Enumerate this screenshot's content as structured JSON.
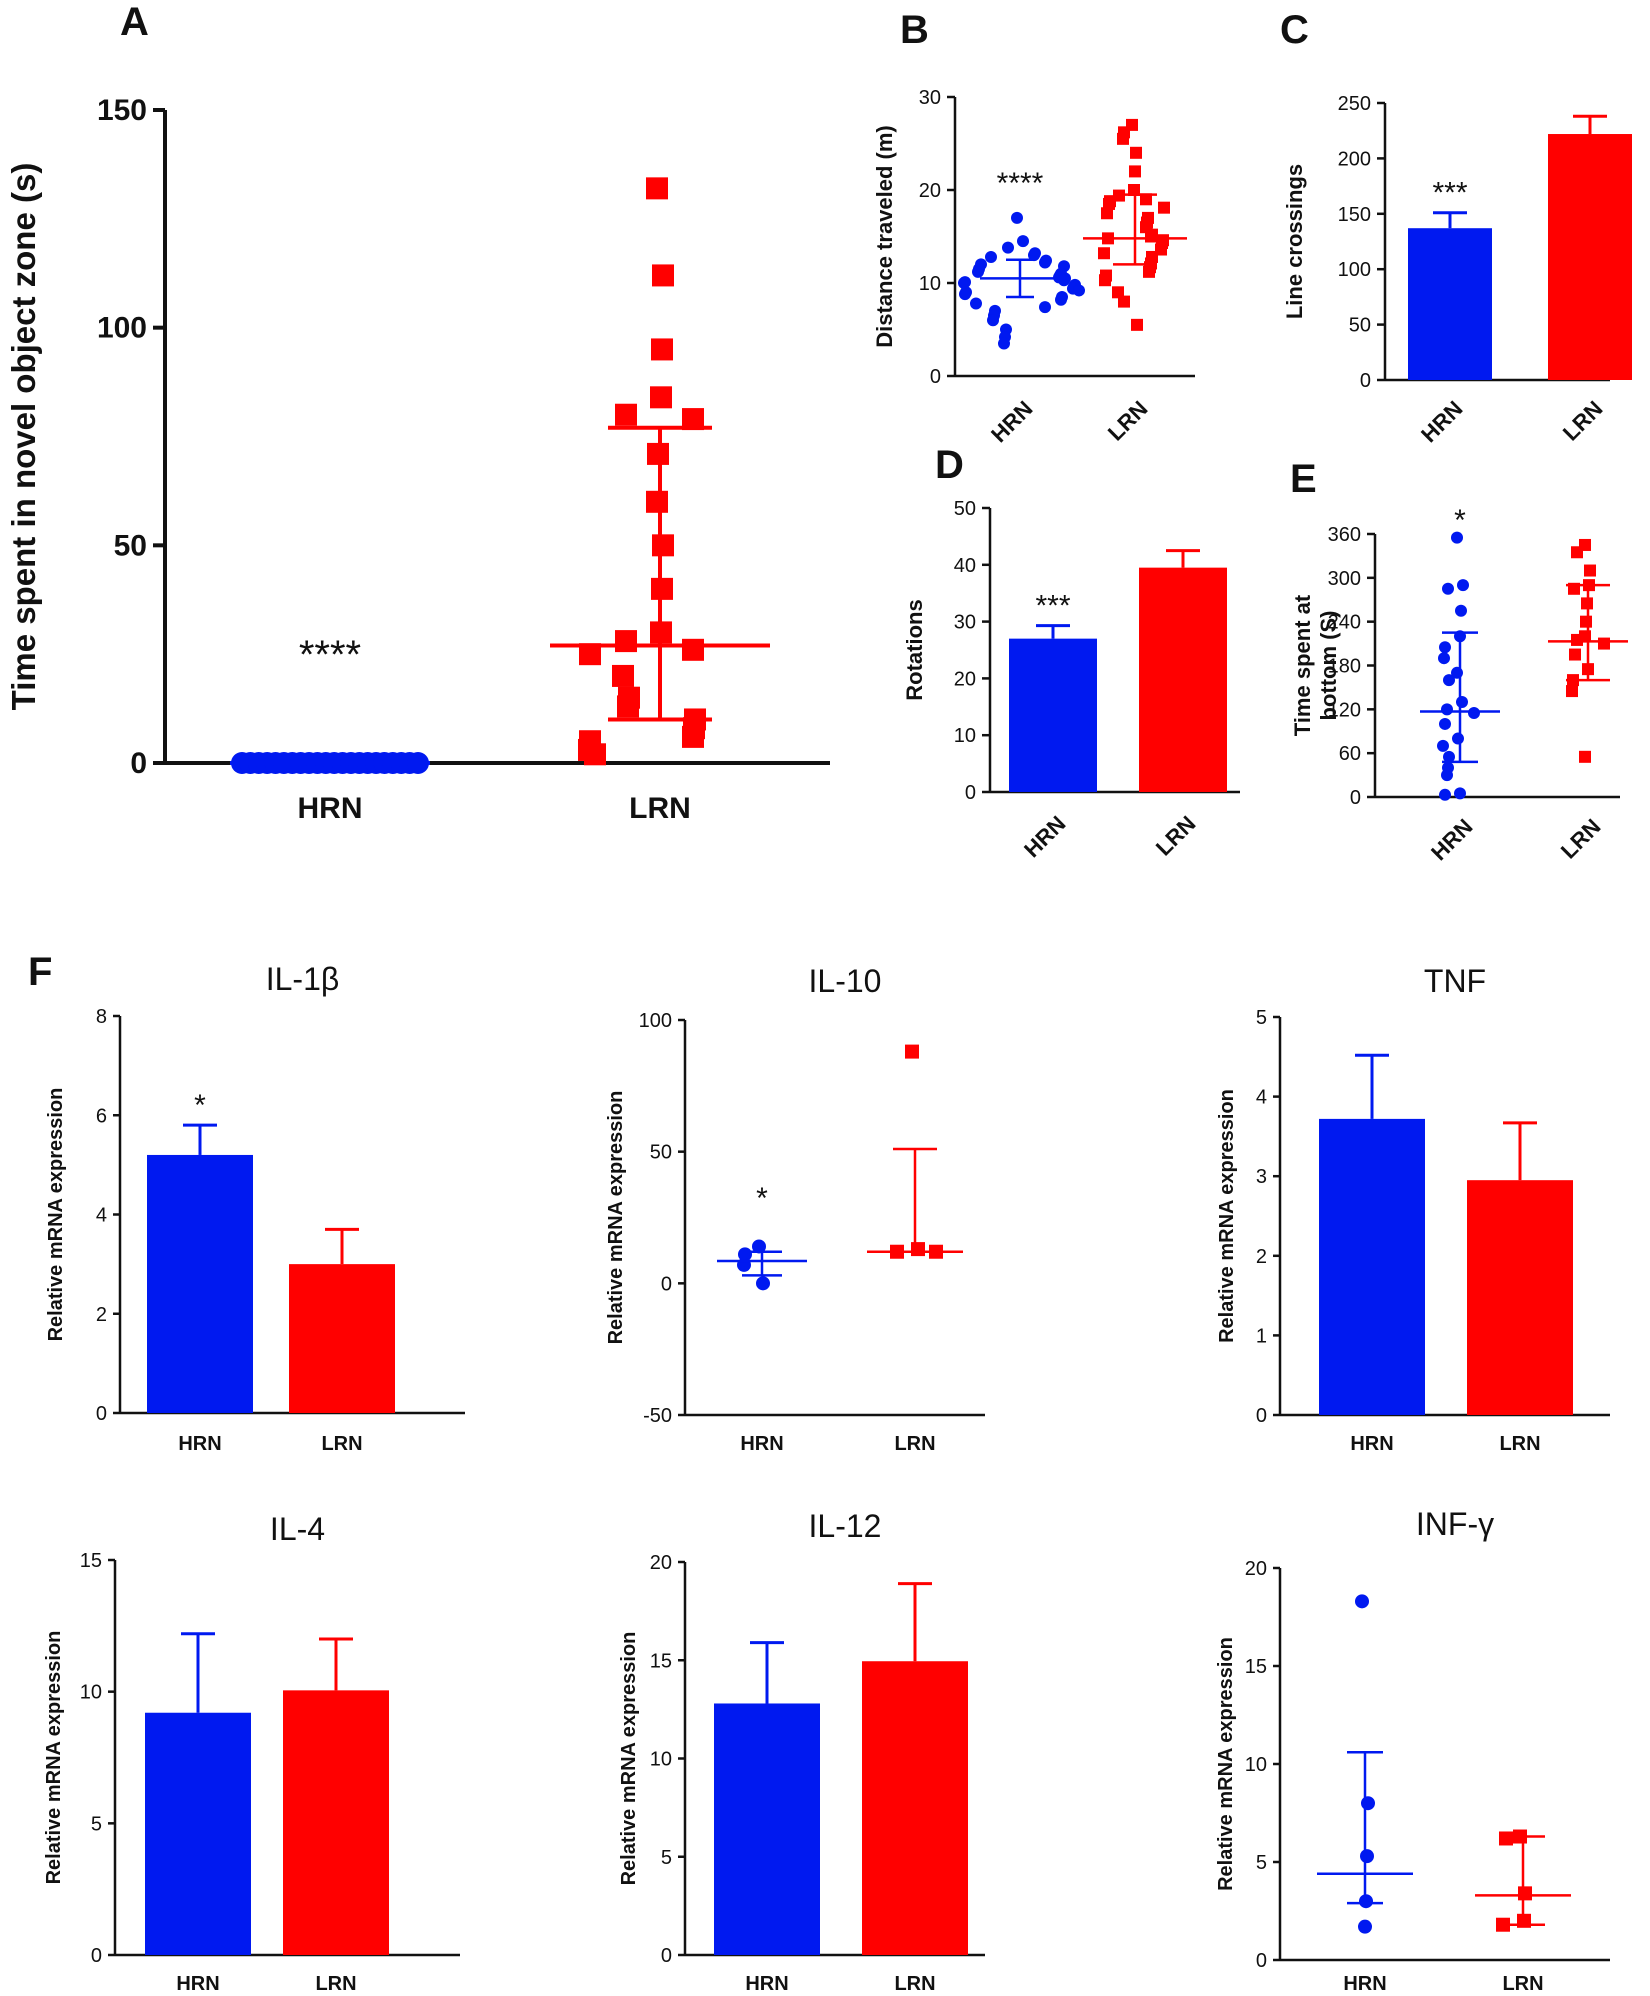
{
  "colors": {
    "HRN": "#0019f0",
    "LRN": "#ff0000",
    "axis": "#111111"
  },
  "chart_data": [
    {
      "panel": "A",
      "type": "scatter",
      "ylabel": "Time spent in novel object zone  (s)",
      "categories": [
        "HRN",
        "LRN"
      ],
      "ylim": [
        0,
        150
      ],
      "yticks": [
        "0",
        "50",
        "100",
        "150"
      ],
      "significance": "****",
      "series": [
        {
          "name": "HRN",
          "marker": "circle",
          "values": [
            0,
            0,
            0,
            0,
            0,
            0,
            0,
            0,
            0,
            0,
            0,
            0,
            0,
            0,
            0,
            0,
            0,
            0,
            0,
            0,
            0,
            0
          ],
          "summary": {
            "center": 0,
            "low": 0,
            "high": 0
          }
        },
        {
          "name": "LRN",
          "marker": "square",
          "values": [
            132,
            112,
            95,
            84,
            80,
            79,
            71,
            60,
            50,
            40,
            30,
            28,
            26,
            25,
            20,
            15,
            13,
            10,
            8,
            6,
            5,
            3,
            2
          ],
          "summary": {
            "center": 27,
            "low": 10,
            "high": 77
          }
        }
      ]
    },
    {
      "panel": "B",
      "type": "scatter",
      "ylabel": "Distance traveled (m)",
      "categories": [
        "HRN",
        "LRN"
      ],
      "ylim": [
        0,
        30
      ],
      "yticks": [
        "0",
        "10",
        "20",
        "30"
      ],
      "significance": "****",
      "series": [
        {
          "name": "HRN",
          "marker": "circle",
          "values": [
            17,
            14.5,
            13.8,
            13.2,
            13,
            12.8,
            12.4,
            12.2,
            12,
            11.8,
            11.5,
            11.2,
            11,
            10.8,
            10.6,
            10.5,
            10.3,
            10.1,
            10,
            9.8,
            9.6,
            9.4,
            9.2,
            9,
            8.8,
            8.5,
            8.2,
            7.8,
            7.4,
            7,
            6.5,
            6,
            5,
            4.2,
            3.5
          ],
          "summary": {
            "center": 10.5,
            "low": 8.5,
            "high": 12.5
          }
        },
        {
          "name": "LRN",
          "marker": "square",
          "values": [
            27,
            26.2,
            25.5,
            24,
            22,
            20,
            19.4,
            19,
            18.8,
            18.5,
            18.1,
            17.5,
            17,
            16.5,
            16,
            15.2,
            15,
            14.8,
            14.6,
            14.3,
            13.6,
            13.2,
            12.8,
            12.1,
            11.7,
            11.2,
            10.8,
            10.3,
            9,
            8,
            5.5
          ],
          "summary": {
            "center": 14.8,
            "low": 12,
            "high": 19.5
          }
        }
      ]
    },
    {
      "panel": "C",
      "type": "bar",
      "ylabel": "Line crossings",
      "categories": [
        "HRN",
        "LRN"
      ],
      "ylim": [
        0,
        250
      ],
      "yticks": [
        "0",
        "50",
        "100",
        "150",
        "200",
        "250"
      ],
      "values": [
        137,
        222
      ],
      "errors": [
        14,
        16
      ],
      "significance": "***"
    },
    {
      "panel": "D",
      "type": "bar",
      "ylabel": "Rotations",
      "categories": [
        "HRN",
        "LRN"
      ],
      "ylim": [
        0,
        50
      ],
      "yticks": [
        "0",
        "10",
        "20",
        "30",
        "40",
        "50"
      ],
      "values": [
        27,
        39.5
      ],
      "errors": [
        2.3,
        3
      ],
      "significance": "***"
    },
    {
      "panel": "E",
      "type": "scatter",
      "ylabel": "Time spent at bottom (S)",
      "ylabel_lines": [
        "Time spent at",
        "bottom (S)"
      ],
      "categories": [
        "HRN",
        "LRN"
      ],
      "ylim": [
        0,
        360
      ],
      "yticks": [
        "0",
        "60",
        "120",
        "180",
        "240",
        "300",
        "360"
      ],
      "significance": "*",
      "series": [
        {
          "name": "HRN",
          "marker": "circle",
          "values": [
            355,
            290,
            285,
            255,
            220,
            205,
            190,
            170,
            160,
            130,
            120,
            115,
            100,
            80,
            70,
            55,
            40,
            30,
            5,
            3
          ],
          "summary": {
            "center": 117,
            "low": 48,
            "high": 225
          }
        },
        {
          "name": "LRN",
          "marker": "square",
          "values": [
            345,
            335,
            310,
            290,
            285,
            265,
            240,
            220,
            215,
            210,
            195,
            175,
            160,
            145,
            55
          ],
          "summary": {
            "center": 213,
            "low": 160,
            "high": 290
          }
        }
      ]
    },
    {
      "panel": "F",
      "type": "bar",
      "title": "IL-1β",
      "ylabel": "Relative mRNA expression",
      "categories": [
        "HRN",
        "LRN"
      ],
      "ylim": [
        0,
        8
      ],
      "yticks": [
        "0",
        "2",
        "4",
        "6",
        "8"
      ],
      "values": [
        5.2,
        3.0
      ],
      "errors": [
        0.6,
        0.7
      ],
      "significance": "*"
    },
    {
      "panel": "F",
      "type": "scatter",
      "title": "IL-10",
      "ylabel": "Relative mRNA expression",
      "categories": [
        "HRN",
        "LRN"
      ],
      "ylim": [
        -50,
        100
      ],
      "yticks": [
        "-50",
        "0",
        "50",
        "100"
      ],
      "significance": "*",
      "series": [
        {
          "name": "HRN",
          "marker": "circle",
          "values": [
            14,
            11,
            7,
            0
          ],
          "summary": {
            "center": 8.5,
            "low": 3,
            "high": 12
          }
        },
        {
          "name": "LRN",
          "marker": "square",
          "values": [
            88,
            13,
            12,
            12
          ],
          "summary": {
            "center": 12,
            "low": 12,
            "high": 51
          }
        }
      ]
    },
    {
      "panel": "F",
      "type": "bar",
      "title": "TNF",
      "ylabel": "Relative mRNA expression",
      "categories": [
        "HRN",
        "LRN"
      ],
      "ylim": [
        0,
        5
      ],
      "yticks": [
        "0",
        "1",
        "2",
        "3",
        "4",
        "5"
      ],
      "values": [
        3.72,
        2.95
      ],
      "errors": [
        0.8,
        0.72
      ]
    },
    {
      "panel": "F",
      "type": "bar",
      "title": "IL-4",
      "ylabel": "Relative mRNA expression",
      "categories": [
        "HRN",
        "LRN"
      ],
      "ylim": [
        0,
        15
      ],
      "yticks": [
        "0",
        "5",
        "10",
        "15"
      ],
      "values": [
        9.2,
        10.05
      ],
      "errors": [
        3.0,
        1.95
      ]
    },
    {
      "panel": "F",
      "type": "bar",
      "title": "IL-12",
      "ylabel": "Relative mRNA expression",
      "categories": [
        "HRN",
        "LRN"
      ],
      "ylim": [
        0,
        20
      ],
      "yticks": [
        "0",
        "5",
        "10",
        "15",
        "20"
      ],
      "values": [
        12.8,
        14.95
      ],
      "errors": [
        3.1,
        3.95
      ]
    },
    {
      "panel": "F",
      "type": "scatter",
      "title": "INF-γ",
      "ylabel": "Relative mRNA expression",
      "categories": [
        "HRN",
        "LRN"
      ],
      "ylim": [
        0,
        20
      ],
      "yticks": [
        "0",
        "5",
        "10",
        "15",
        "20"
      ],
      "series": [
        {
          "name": "HRN",
          "marker": "circle",
          "values": [
            18.3,
            8,
            5.3,
            3,
            1.7
          ],
          "summary": {
            "center": 4.4,
            "low": 2.9,
            "high": 10.6
          }
        },
        {
          "name": "LRN",
          "marker": "square",
          "values": [
            6.3,
            6.2,
            3.4,
            2.0,
            1.8
          ],
          "summary": {
            "center": 3.3,
            "low": 1.8,
            "high": 6.3
          }
        }
      ]
    }
  ]
}
